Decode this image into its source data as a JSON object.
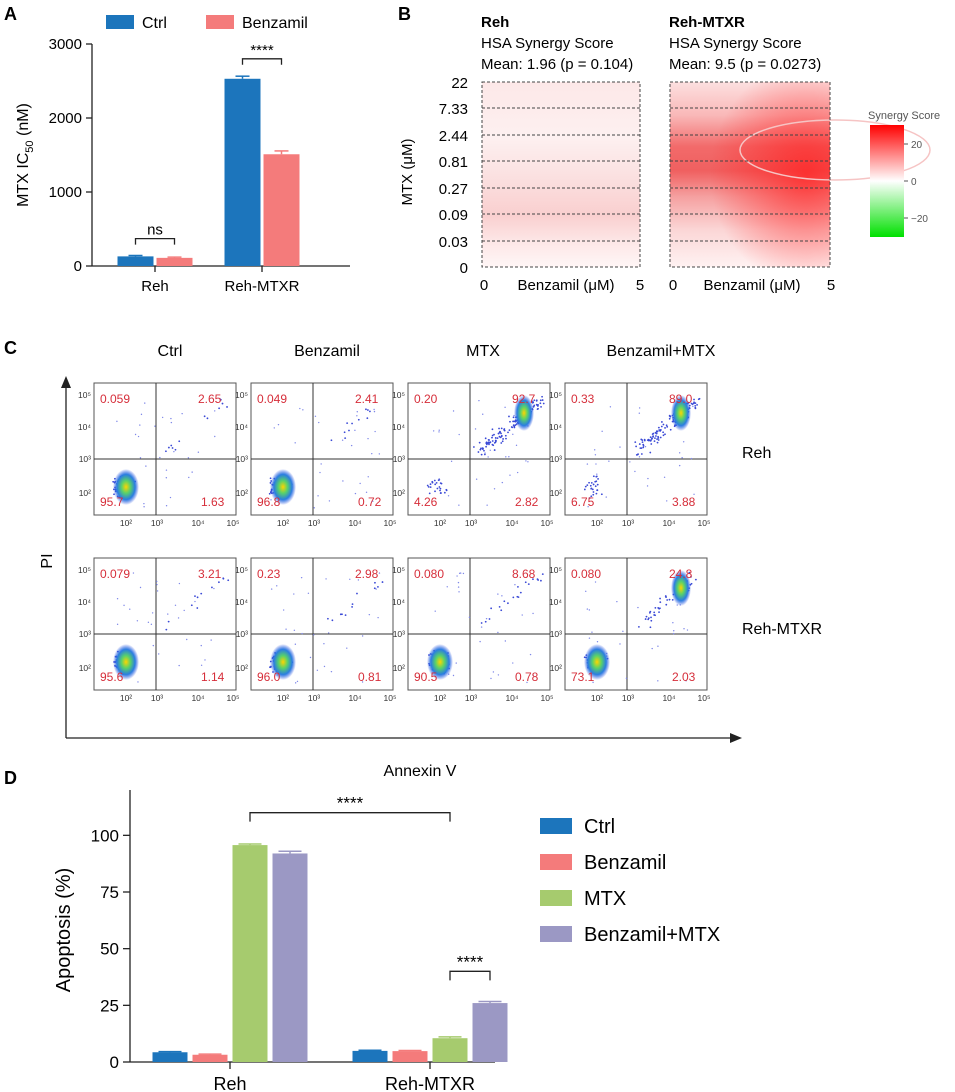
{
  "colors": {
    "ctrl": "#1c75bc",
    "benzamil": "#f47b7b",
    "mtx": "#a6cb6e",
    "combo": "#9b98c4",
    "quadrant_text": "#d62e3a",
    "axis": "#222222",
    "synergy_high": "#ff0000",
    "synergy_zero": "#ffffff",
    "synergy_low": "#00e000"
  },
  "panel_letters": {
    "a": "A",
    "b": "B",
    "c": "C",
    "d": "D"
  },
  "chart_data": [
    {
      "id": "panelA",
      "type": "bar",
      "title": "",
      "ylabel_main": "MTX IC",
      "ylabel_sub": "50",
      "ylabel_unit": " (nM)",
      "ylim": [
        0,
        3000
      ],
      "yticks": [
        0,
        1000,
        2000,
        3000
      ],
      "categories": [
        "Reh",
        "Reh-MTXR"
      ],
      "series": [
        {
          "name": "Ctrl",
          "color_key": "ctrl",
          "values": [
            130,
            2530
          ],
          "errors": [
            12,
            35
          ]
        },
        {
          "name": "Benzamil",
          "color_key": "benzamil",
          "values": [
            110,
            1510
          ],
          "errors": [
            10,
            45
          ]
        }
      ],
      "annotations": [
        {
          "label": "ns",
          "category_index": 0,
          "y": 370
        },
        {
          "label": "****",
          "category_index": 1,
          "y": 2800
        }
      ]
    },
    {
      "id": "panelB",
      "type": "heatmap",
      "ylabel": "MTX (μM)",
      "xlabel": "Benzamil (μM)",
      "y_tick_labels": [
        "22",
        "7.33",
        "2.44",
        "0.81",
        "0.27",
        "0.09",
        "0.03",
        "0"
      ],
      "x_tick_labels": [
        "0",
        "5"
      ],
      "colorbar": {
        "title": "Synergy Score",
        "ticks": [
          "20",
          "0",
          "−20"
        ],
        "range": [
          -30,
          30
        ]
      },
      "panels": [
        {
          "name": "Reh",
          "metric": "HSA Synergy Score",
          "mean_line": "Mean: 1.96 (p = 0.104)",
          "mean": 1.96,
          "p": 0.104
        },
        {
          "name": "Reh-MTXR",
          "metric": "HSA Synergy Score",
          "mean_line": "Mean: 9.5 (p = 0.0273)",
          "mean": 9.5,
          "p": 0.0273
        }
      ]
    },
    {
      "id": "panelC",
      "type": "scatter",
      "xlabel": "Annexin V",
      "ylabel": "PI",
      "column_labels": [
        "Ctrl",
        "Benzamil",
        "MTX",
        "Benzamil+MTX"
      ],
      "row_labels": [
        "Reh",
        "Reh-MTXR"
      ],
      "axis_tick_labels": [
        "10²",
        "10³",
        "10⁴",
        "10⁵"
      ],
      "quadrants": [
        [
          {
            "ul": "0.059",
            "ur": "2.65",
            "ll": "95.7",
            "lr": "1.63"
          },
          {
            "ul": "0.049",
            "ur": "2.41",
            "ll": "96.8",
            "lr": "0.72"
          },
          {
            "ul": "0.20",
            "ur": "92.7",
            "ll": "4.26",
            "lr": "2.82"
          },
          {
            "ul": "0.33",
            "ur": "89.0",
            "ll": "6.75",
            "lr": "3.88"
          }
        ],
        [
          {
            "ul": "0.079",
            "ur": "3.21",
            "ll": "95.6",
            "lr": "1.14"
          },
          {
            "ul": "0.23",
            "ur": "2.98",
            "ll": "96.0",
            "lr": "0.81"
          },
          {
            "ul": "0.080",
            "ur": "8.68",
            "ll": "90.5",
            "lr": "0.78"
          },
          {
            "ul": "0.080",
            "ur": "24.8",
            "ll": "73.1",
            "lr": "2.03"
          }
        ]
      ]
    },
    {
      "id": "panelD",
      "type": "bar",
      "ylabel": "Apoptosis (%)",
      "ylim": [
        0,
        120
      ],
      "yticks": [
        0,
        25,
        50,
        75,
        100
      ],
      "categories": [
        "Reh",
        "Reh-MTXR"
      ],
      "series": [
        {
          "name": "Ctrl",
          "color_key": "ctrl",
          "values": [
            4.3,
            4.9
          ],
          "errors": [
            0.3,
            0.3
          ]
        },
        {
          "name": "Benzamil",
          "color_key": "benzamil",
          "values": [
            3.2,
            4.8
          ],
          "errors": [
            0.3,
            0.3
          ]
        },
        {
          "name": "MTX",
          "color_key": "mtx",
          "values": [
            95.7,
            10.5
          ],
          "errors": [
            0.5,
            0.6
          ]
        },
        {
          "name": "Benzamil+MTX",
          "color_key": "combo",
          "values": [
            92.0,
            26.0
          ],
          "errors": [
            1.0,
            0.7
          ]
        }
      ],
      "annotations": [
        {
          "label": "****",
          "from": [
            0,
            2
          ],
          "to": [
            1,
            2
          ],
          "y": 110
        },
        {
          "label": "****",
          "from": [
            1,
            2
          ],
          "to": [
            1,
            3
          ],
          "y": 40
        }
      ]
    }
  ]
}
